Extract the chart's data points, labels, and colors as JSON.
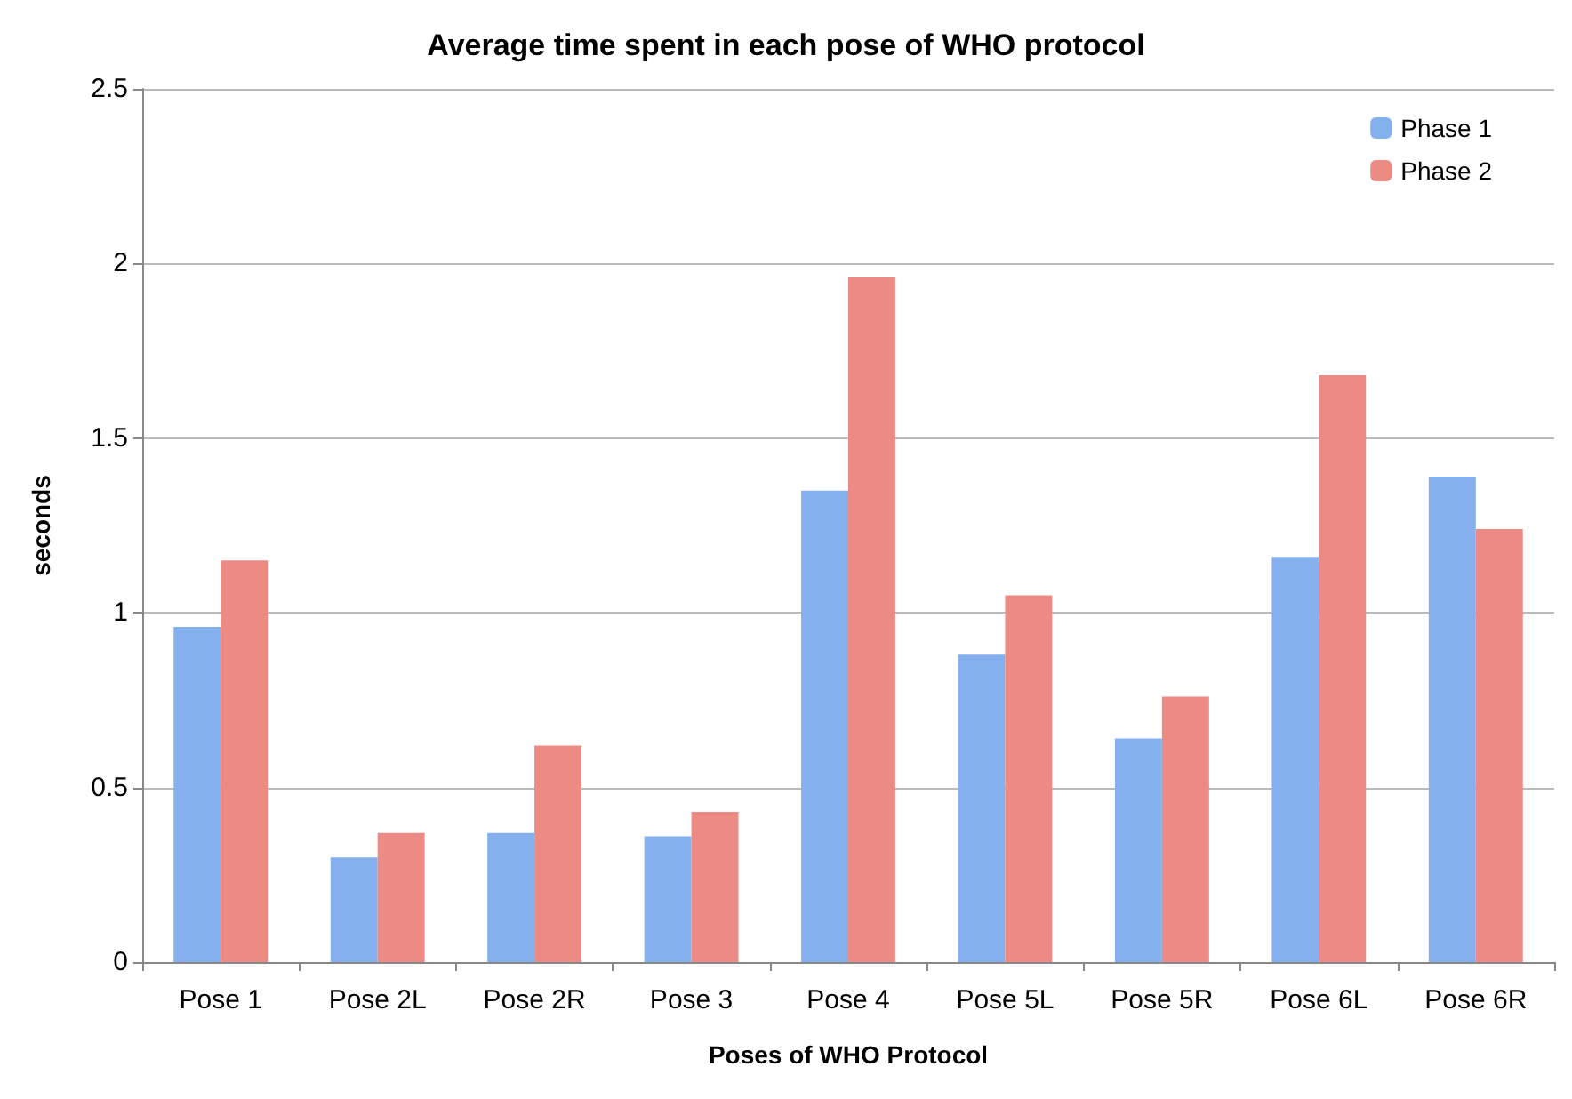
{
  "chart_data": {
    "type": "bar",
    "title": "Average time spent in each pose of WHO protocol",
    "xlabel": "Poses of WHO Protocol",
    "ylabel": "seconds",
    "categories": [
      "Pose 1",
      "Pose 2L",
      "Pose 2R",
      "Pose 3",
      "Pose 4",
      "Pose 5L",
      "Pose 5R",
      "Pose 6L",
      "Pose 6R"
    ],
    "series": [
      {
        "name": "Phase 1",
        "color": "#84b0ee",
        "values": [
          0.96,
          0.3,
          0.37,
          0.36,
          1.35,
          0.88,
          0.64,
          1.16,
          1.39
        ]
      },
      {
        "name": "Phase 2",
        "color": "#ec8a84",
        "values": [
          1.15,
          0.37,
          0.62,
          0.43,
          1.96,
          1.05,
          0.76,
          1.68,
          1.24
        ]
      }
    ],
    "ylim": [
      0,
      2.5
    ],
    "yticks": [
      0,
      0.5,
      1,
      1.5,
      2,
      2.5
    ],
    "grid": "y",
    "legend": "top right"
  }
}
